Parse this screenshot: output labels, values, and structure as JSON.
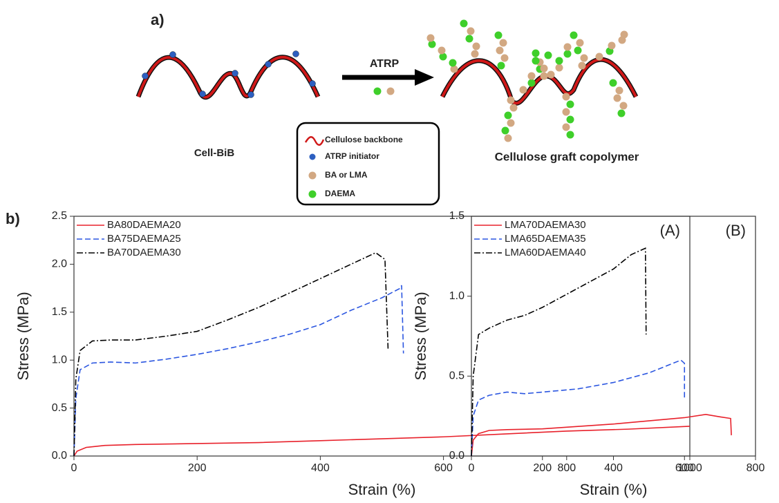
{
  "figure": {
    "panel_labels": [
      "a)",
      "b)"
    ],
    "diagram": {
      "arrow_label": "ATRP",
      "left_label": "Cell-BiB",
      "right_label": "Cellulose graft copolymer",
      "legend": [
        "Cellulose backbone",
        "ATRP initiator",
        "BA or LMA",
        "DAEMA"
      ]
    }
  },
  "chart_data": [
    {
      "type": "line",
      "annotation": "(A)",
      "xlabel": "Strain (%)",
      "ylabel": "Stress (MPa)",
      "xlim": [
        0,
        1000
      ],
      "xticks": [
        0,
        200,
        400,
        600,
        800,
        1000
      ],
      "ylim": [
        0,
        2.5
      ],
      "yticks": [
        {
          "value": 0,
          "label": "0.0"
        },
        0.5,
        {
          "value": 1,
          "label": "1.0"
        },
        1.5,
        {
          "value": 2,
          "label": "2.0"
        },
        2.5
      ],
      "legend": "upper left",
      "series": [
        {
          "name": "BA80DAEMA20",
          "color": "#e8202a",
          "dash": "solid",
          "x": [
            0,
            5,
            20,
            50,
            100,
            200,
            300,
            400,
            500,
            600,
            700,
            800,
            900,
            1000
          ],
          "values": [
            0,
            0.05,
            0.09,
            0.11,
            0.12,
            0.13,
            0.14,
            0.16,
            0.18,
            0.2,
            0.23,
            0.26,
            0.28,
            0.31
          ]
        },
        {
          "name": "BA75DAEMA25",
          "color": "#2a55e0",
          "dash": "dashed",
          "x": [
            0,
            3,
            10,
            30,
            60,
            100,
            150,
            200,
            250,
            300,
            350,
            400,
            450,
            500,
            530,
            532,
            535
          ],
          "values": [
            0,
            0.6,
            0.9,
            0.97,
            0.98,
            0.97,
            1.01,
            1.06,
            1.12,
            1.19,
            1.27,
            1.37,
            1.52,
            1.65,
            1.75,
            1.78,
            1.07
          ]
        },
        {
          "name": "BA70DAEMA30",
          "color": "#000000",
          "dash": "dashdot",
          "x": [
            0,
            3,
            10,
            30,
            60,
            100,
            150,
            200,
            250,
            300,
            350,
            400,
            450,
            490,
            505,
            510
          ],
          "values": [
            0,
            0.8,
            1.1,
            1.2,
            1.21,
            1.21,
            1.25,
            1.3,
            1.42,
            1.55,
            1.7,
            1.85,
            2.0,
            2.12,
            2.05,
            1.12
          ]
        }
      ]
    },
    {
      "type": "line",
      "annotation": "(B)",
      "xlabel": "Strain (%)",
      "ylabel": "Stress (MPa)",
      "xlim": [
        0,
        800
      ],
      "xticks": [
        0,
        200,
        400,
        600,
        800
      ],
      "ylim": [
        0,
        1.5
      ],
      "yticks": [
        {
          "value": 0,
          "label": "0.0"
        },
        0.5,
        {
          "value": 1,
          "label": "1.0"
        },
        1.5
      ],
      "legend": "upper left",
      "series": [
        {
          "name": "LMA70DAEMA30",
          "color": "#e8202a",
          "dash": "solid",
          "x": [
            0,
            5,
            20,
            50,
            100,
            200,
            300,
            400,
            500,
            600,
            660,
            700,
            730,
            732
          ],
          "values": [
            0,
            0.1,
            0.14,
            0.16,
            0.165,
            0.17,
            0.185,
            0.2,
            0.22,
            0.24,
            0.26,
            0.245,
            0.235,
            0.13
          ]
        },
        {
          "name": "LMA65DAEMA35",
          "color": "#2a55e0",
          "dash": "dashed",
          "x": [
            0,
            5,
            20,
            50,
            100,
            150,
            200,
            300,
            400,
            500,
            590,
            600,
            600
          ],
          "values": [
            0,
            0.25,
            0.35,
            0.38,
            0.4,
            0.39,
            0.4,
            0.42,
            0.46,
            0.52,
            0.6,
            0.58,
            0.36
          ]
        },
        {
          "name": "LMA60DAEMA40",
          "color": "#000000",
          "dash": "dashdot",
          "x": [
            0,
            5,
            20,
            50,
            100,
            150,
            200,
            300,
            400,
            450,
            490,
            492
          ],
          "values": [
            0,
            0.5,
            0.76,
            0.8,
            0.85,
            0.88,
            0.93,
            1.05,
            1.17,
            1.26,
            1.3,
            0.76
          ]
        }
      ]
    }
  ]
}
